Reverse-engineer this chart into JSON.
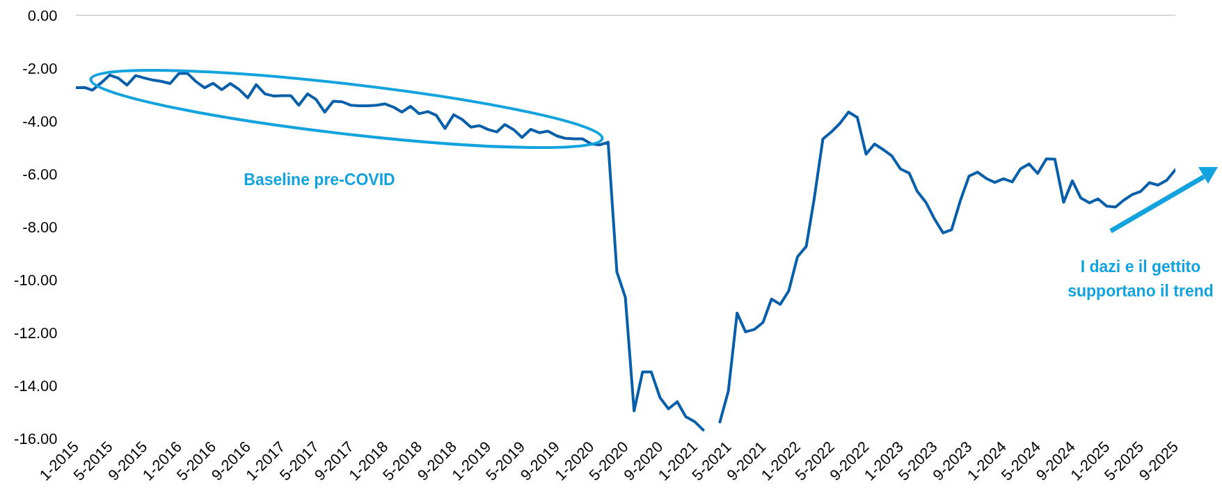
{
  "chart_data": {
    "type": "line",
    "x": [
      "2015-01",
      "2015-02",
      "2015-03",
      "2015-04",
      "2015-05",
      "2015-06",
      "2015-07",
      "2015-08",
      "2015-09",
      "2015-10",
      "2015-11",
      "2015-12",
      "2016-01",
      "2016-02",
      "2016-03",
      "2016-04",
      "2016-05",
      "2016-06",
      "2016-07",
      "2016-08",
      "2016-09",
      "2016-10",
      "2016-11",
      "2016-12",
      "2017-01",
      "2017-02",
      "2017-03",
      "2017-04",
      "2017-05",
      "2017-06",
      "2017-07",
      "2017-08",
      "2017-09",
      "2017-10",
      "2017-11",
      "2017-12",
      "2018-01",
      "2018-02",
      "2018-03",
      "2018-04",
      "2018-05",
      "2018-06",
      "2018-07",
      "2018-08",
      "2018-09",
      "2018-10",
      "2018-11",
      "2018-12",
      "2019-01",
      "2019-02",
      "2019-03",
      "2019-04",
      "2019-05",
      "2019-06",
      "2019-07",
      "2019-08",
      "2019-09",
      "2019-10",
      "2019-11",
      "2019-12",
      "2020-01",
      "2020-02",
      "2020-03",
      "2020-04",
      "2020-05",
      "2020-06",
      "2020-07",
      "2020-08",
      "2020-09",
      "2020-10",
      "2020-11",
      "2020-12",
      "2021-01",
      "2021-02",
      "2021-03",
      "2021-04",
      "2021-05",
      "2021-06",
      "2021-07",
      "2021-08",
      "2021-09",
      "2021-10",
      "2021-11",
      "2021-12",
      "2022-01",
      "2022-02",
      "2022-03",
      "2022-04",
      "2022-05",
      "2022-06",
      "2022-07",
      "2022-08",
      "2022-09",
      "2022-10",
      "2022-11",
      "2022-12",
      "2023-01",
      "2023-02",
      "2023-03",
      "2023-04",
      "2023-05",
      "2023-06",
      "2023-07",
      "2023-08",
      "2023-09",
      "2023-10",
      "2023-11",
      "2023-12",
      "2024-01",
      "2024-02",
      "2024-03",
      "2024-04",
      "2024-05",
      "2024-06",
      "2024-07",
      "2024-08",
      "2024-09",
      "2024-10",
      "2024-11",
      "2024-12",
      "2025-01",
      "2025-02",
      "2025-03",
      "2025-04",
      "2025-05",
      "2025-06",
      "2025-07",
      "2025-08",
      "2025-09"
    ],
    "series": [
      {
        "color": "#075fa9",
        "values": [
          -2.74,
          -2.73,
          -2.83,
          -2.55,
          -2.26,
          -2.38,
          -2.64,
          -2.28,
          -2.37,
          -2.45,
          -2.5,
          -2.58,
          -2.2,
          -2.2,
          -2.5,
          -2.74,
          -2.57,
          -2.81,
          -2.58,
          -2.8,
          -3.12,
          -2.62,
          -2.97,
          -3.05,
          -3.04,
          -3.04,
          -3.4,
          -2.97,
          -3.18,
          -3.66,
          -3.25,
          -3.27,
          -3.4,
          -3.42,
          -3.42,
          -3.4,
          -3.35,
          -3.48,
          -3.66,
          -3.44,
          -3.72,
          -3.64,
          -3.78,
          -4.28,
          -3.76,
          -3.94,
          -4.23,
          -4.17,
          -4.32,
          -4.41,
          -4.13,
          -4.32,
          -4.62,
          -4.31,
          -4.44,
          -4.38,
          -4.56,
          -4.65,
          -4.67,
          -4.67,
          -4.86,
          -4.9,
          -4.8,
          -9.7,
          -10.66,
          -14.96,
          -13.49,
          -13.49,
          -14.46,
          -14.88,
          -14.61,
          -15.18,
          -15.36,
          -15.68,
          null,
          -15.38,
          -14.21,
          -11.26,
          -11.97,
          -11.88,
          -11.61,
          -10.73,
          -10.93,
          -10.42,
          -9.13,
          -8.74,
          -6.95,
          -4.68,
          -4.41,
          -4.08,
          -3.66,
          -3.86,
          -5.25,
          -4.87,
          -5.08,
          -5.31,
          -5.81,
          -5.97,
          -6.65,
          -7.07,
          -7.69,
          -8.23,
          -8.11,
          -7.01,
          -6.08,
          -5.93,
          -6.17,
          -6.32,
          -6.18,
          -6.3,
          -5.81,
          -5.62,
          -5.98,
          -5.43,
          -5.44,
          -7.07,
          -6.26,
          -6.91,
          -7.09,
          -6.94,
          -7.22,
          -7.25,
          -7.0,
          -6.78,
          -6.66,
          -6.33,
          -6.42,
          -6.24,
          -5.84
        ]
      }
    ],
    "xlim": [
      "2015-01",
      "2025-09"
    ],
    "xticks": [
      {
        "value": "2015-01",
        "label": "1-2015"
      },
      {
        "value": "2015-05",
        "label": "5-2015"
      },
      {
        "value": "2015-09",
        "label": "9-2015"
      },
      {
        "value": "2016-01",
        "label": "1-2016"
      },
      {
        "value": "2016-05",
        "label": "5-2016"
      },
      {
        "value": "2016-09",
        "label": "9-2016"
      },
      {
        "value": "2017-01",
        "label": "1-2017"
      },
      {
        "value": "2017-05",
        "label": "5-2017"
      },
      {
        "value": "2017-09",
        "label": "9-2017"
      },
      {
        "value": "2018-01",
        "label": "1-2018"
      },
      {
        "value": "2018-05",
        "label": "5-2018"
      },
      {
        "value": "2018-09",
        "label": "9-2018"
      },
      {
        "value": "2019-01",
        "label": "1-2019"
      },
      {
        "value": "2019-05",
        "label": "5-2019"
      },
      {
        "value": "2019-09",
        "label": "9-2019"
      },
      {
        "value": "2020-01",
        "label": "1-2020"
      },
      {
        "value": "2020-05",
        "label": "5-2020"
      },
      {
        "value": "2020-09",
        "label": "9-2020"
      },
      {
        "value": "2021-01",
        "label": "1-2021"
      },
      {
        "value": "2021-05",
        "label": "5-2021"
      },
      {
        "value": "2021-09",
        "label": "9-2021"
      },
      {
        "value": "2022-01",
        "label": "1-2022"
      },
      {
        "value": "2022-05",
        "label": "5-2022"
      },
      {
        "value": "2022-09",
        "label": "9-2022"
      },
      {
        "value": "2023-01",
        "label": "1-2023"
      },
      {
        "value": "2023-05",
        "label": "5-2023"
      },
      {
        "value": "2023-09",
        "label": "9-2023"
      },
      {
        "value": "2024-01",
        "label": "1-2024"
      },
      {
        "value": "2024-05",
        "label": "5-2024"
      },
      {
        "value": "2024-09",
        "label": "9-2024"
      },
      {
        "value": "2025-01",
        "label": "1-2025"
      },
      {
        "value": "2025-05",
        "label": "5-2025"
      },
      {
        "value": "2025-09",
        "label": "9-2025"
      }
    ],
    "ylim": [
      -16,
      0
    ],
    "yticks": [
      {
        "value": 0,
        "label": "0.00"
      },
      {
        "value": -2,
        "label": "-2.00"
      },
      {
        "value": -4,
        "label": "-4.00"
      },
      {
        "value": -6,
        "label": "-6.00"
      },
      {
        "value": -8,
        "label": "-8.00"
      },
      {
        "value": -10,
        "label": "-10.00"
      },
      {
        "value": -12,
        "label": "-12.00"
      },
      {
        "value": -14,
        "label": "-14.00"
      },
      {
        "value": -16,
        "label": "-16.00"
      }
    ],
    "ref_lines": [
      {
        "axis": "y",
        "value": 0,
        "color": "#d9d9d9"
      }
    ],
    "line_style": "solid",
    "annotations": [
      "Baseline pre-COVID",
      "I dazi e il gettito supportano il trend"
    ]
  }
}
